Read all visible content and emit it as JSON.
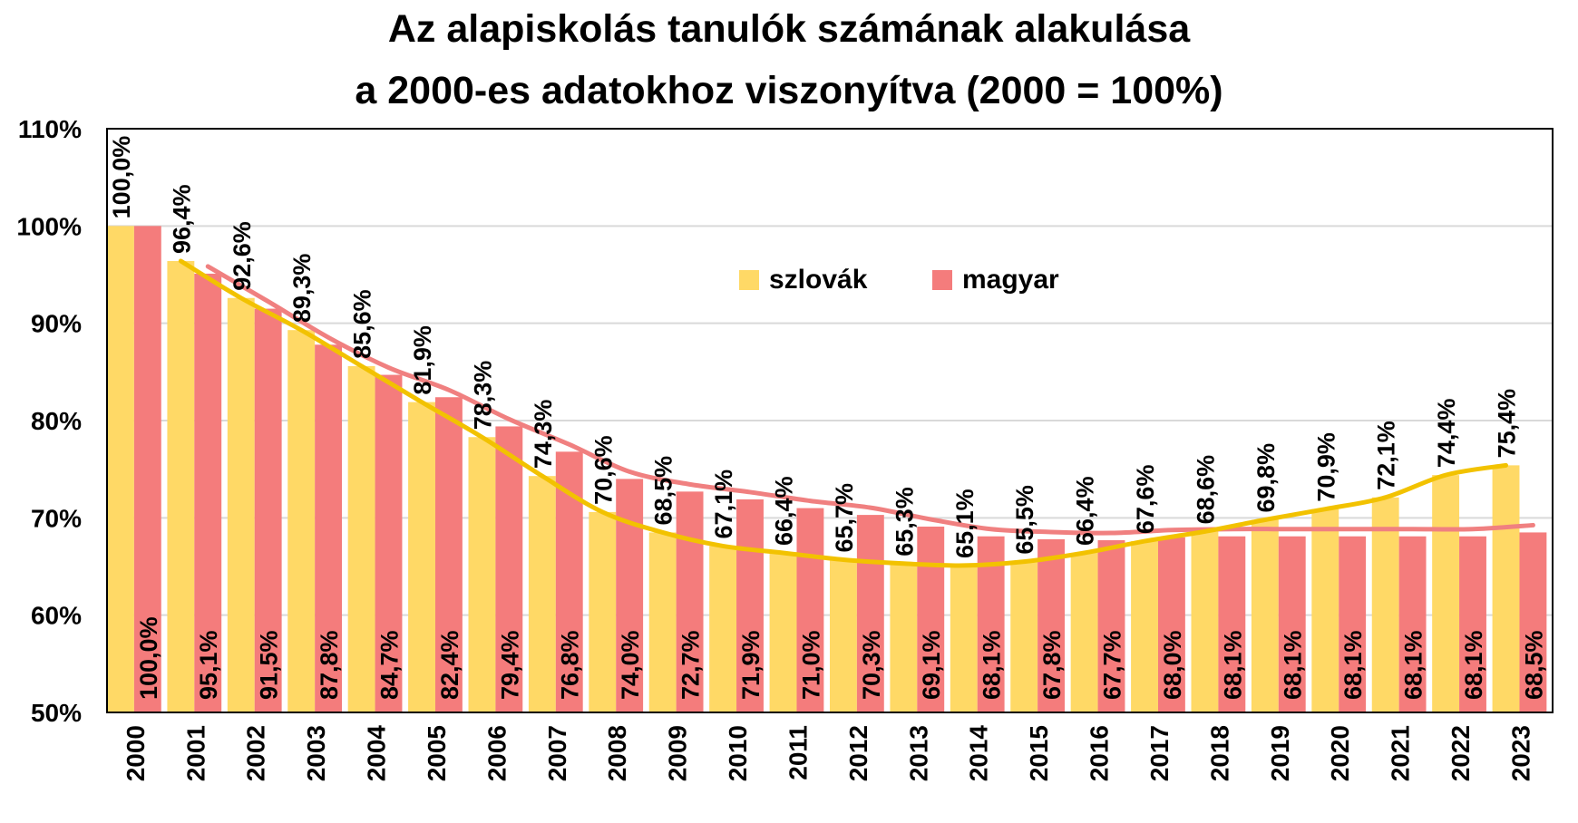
{
  "chart_data": {
    "type": "bar",
    "title": "Az alapiskolás tanulók számának alakulása",
    "subtitle": "a 2000-es adatokhoz viszonyítva (2000 = 100%)",
    "ylim": [
      50,
      110
    ],
    "yticks": [
      "50%",
      "60%",
      "70%",
      "80%",
      "90%",
      "100%",
      "110%"
    ],
    "ytick_values": [
      50,
      60,
      70,
      80,
      90,
      100,
      110
    ],
    "categories": [
      "2000",
      "2001",
      "2002",
      "2003",
      "2004",
      "2005",
      "2006",
      "2007",
      "2008",
      "2009",
      "2010",
      "2011",
      "2012",
      "2013",
      "2014",
      "2015",
      "2016",
      "2017",
      "2018",
      "2019",
      "2020",
      "2021",
      "2022",
      "2023"
    ],
    "series": [
      {
        "name": "szlovák",
        "color": "#FFD966",
        "values": [
          100.0,
          96.4,
          92.6,
          89.3,
          85.6,
          81.9,
          78.3,
          74.3,
          70.6,
          68.5,
          67.1,
          66.4,
          65.7,
          65.3,
          65.1,
          65.5,
          66.4,
          67.6,
          68.6,
          69.8,
          70.9,
          72.1,
          74.4,
          75.4
        ],
        "labels": [
          "100,0%",
          "96,4%",
          "92,6%",
          "89,3%",
          "85,6%",
          "81,9%",
          "78,3%",
          "74,3%",
          "70,6%",
          "68,5%",
          "67,1%",
          "66,4%",
          "65,7%",
          "65,3%",
          "65,1%",
          "65,5%",
          "66,4%",
          "67,6%",
          "68,6%",
          "69,8%",
          "70,9%",
          "72,1%",
          "74,4%",
          "75,4%"
        ],
        "trend_color": "#F2C200"
      },
      {
        "name": "magyar",
        "color": "#F47C7C",
        "values": [
          100.0,
          95.1,
          91.5,
          87.8,
          84.7,
          82.4,
          79.4,
          76.8,
          74.0,
          72.7,
          71.9,
          71.0,
          70.3,
          69.1,
          68.1,
          67.8,
          67.7,
          68.0,
          68.1,
          68.1,
          68.1,
          68.1,
          68.1,
          68.5
        ],
        "labels": [
          "100,0%",
          "95,1%",
          "91,5%",
          "87,8%",
          "84,7%",
          "82,4%",
          "79,4%",
          "76,8%",
          "74,0%",
          "72,7%",
          "71,9%",
          "71,0%",
          "70,3%",
          "69,1%",
          "68,1%",
          "67,8%",
          "67,7%",
          "68,0%",
          "68,1%",
          "68,1%",
          "68,1%",
          "68,1%",
          "68,1%",
          "68,5%"
        ],
        "trend_color": "#F08080"
      }
    ],
    "legend_position": "top-center",
    "grid": true
  }
}
